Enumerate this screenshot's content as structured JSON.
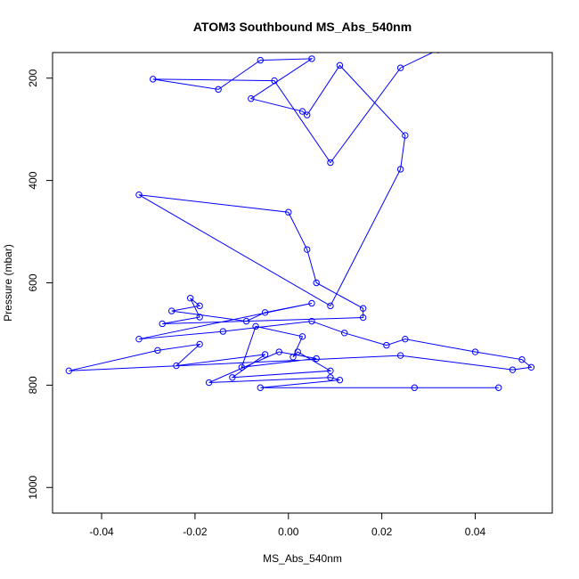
{
  "chart_data": {
    "type": "line",
    "title": "ATOM3 Southbound MS_Abs_540nm",
    "xlabel": "MS_Abs_540nm",
    "ylabel": "Pressure (mbar)",
    "xlim": [
      -0.0505,
      0.0565
    ],
    "ylim": [
      1050,
      150
    ],
    "y_reversed": true,
    "x_ticks": [
      -0.04,
      -0.02,
      0.0,
      0.02,
      0.04
    ],
    "x_tick_labels": [
      "-0.04",
      "-0.02",
      "0.00",
      "0.02",
      "0.04"
    ],
    "y_ticks": [
      200,
      400,
      600,
      800,
      1000
    ],
    "y_tick_labels": [
      "200",
      "400",
      "600",
      "800",
      "1000"
    ],
    "series_color": "#0000ff",
    "marker": "open-circle",
    "grid": false,
    "series": [
      {
        "x": [
          0.032,
          0.024,
          0.009,
          -0.003,
          -0.029,
          -0.015,
          -0.006,
          0.005,
          -0.008,
          0.003,
          0.004,
          0.011,
          0.025,
          0.024,
          0.009,
          -0.032,
          0.0,
          0.004,
          0.006,
          0.016,
          0.016,
          -0.027,
          -0.019,
          -0.021,
          -0.019,
          -0.025,
          -0.009,
          -0.005,
          0.005,
          -0.032,
          -0.014,
          0.005,
          0.012,
          0.021,
          0.025,
          0.04,
          0.05,
          0.052,
          0.048,
          0.024,
          -0.047,
          -0.028,
          -0.019,
          -0.024,
          -0.005,
          -0.012,
          0.009,
          0.002,
          0.001,
          0.003,
          -0.007,
          -0.01,
          0.006,
          -0.002,
          -0.017,
          0.009,
          0.011,
          -0.006,
          0.027,
          0.045
        ],
        "y": [
          145,
          180,
          365,
          205,
          202,
          222,
          165,
          162,
          240,
          265,
          272,
          175,
          312,
          378,
          645,
          428,
          462,
          535,
          600,
          650,
          668,
          680,
          667,
          630,
          645,
          655,
          675,
          658,
          640,
          710,
          695,
          675,
          698,
          722,
          710,
          735,
          750,
          765,
          770,
          742,
          772,
          732,
          720,
          762,
          740,
          785,
          772,
          735,
          745,
          705,
          685,
          765,
          748,
          735,
          795,
          785,
          790,
          805,
          805,
          805
        ]
      }
    ]
  }
}
